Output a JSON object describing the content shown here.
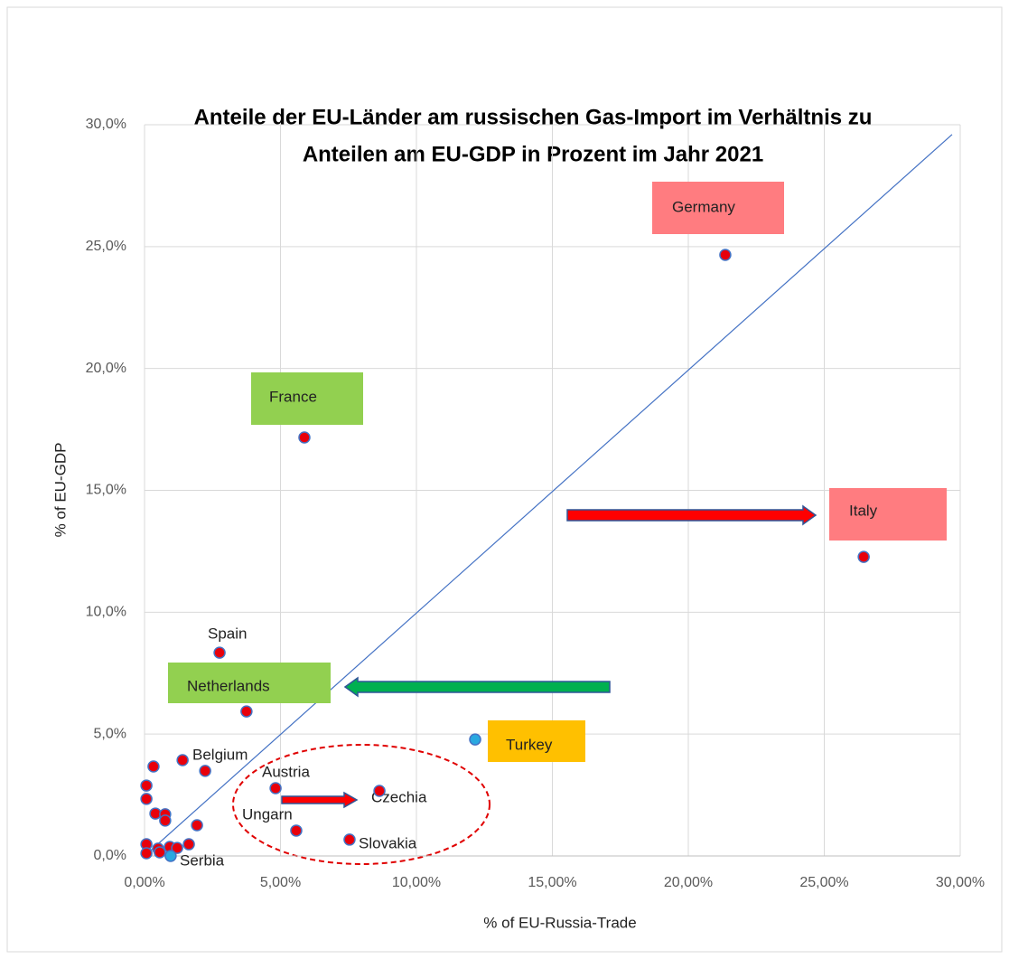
{
  "chart_data": {
    "type": "scatter",
    "title": [
      "Anteile der EU-Länder am russischen Gas-Import im Verhältnis zu",
      "Anteilen am EU-GDP in Prozent im Jahr 2021"
    ],
    "x_label": "% of  EU-Russia-Trade",
    "y_label": "% of EU-GDP",
    "xlim": [
      0,
      30
    ],
    "ylim": [
      0,
      30
    ],
    "xticks": [
      {
        "value": 0,
        "label": "0,00%"
      },
      {
        "value": 5,
        "label": "5,00%"
      },
      {
        "value": 10,
        "label": "10,00%"
      },
      {
        "value": 15,
        "label": "15,00%"
      },
      {
        "value": 20,
        "label": "20,00%"
      },
      {
        "value": 25,
        "label": "25,00%"
      },
      {
        "value": 30,
        "label": "30,00%"
      }
    ],
    "yticks": [
      {
        "value": 0,
        "label": "0,0%"
      },
      {
        "value": 5,
        "label": "5,0%"
      },
      {
        "value": 10,
        "label": "10,0%"
      },
      {
        "value": 15,
        "label": "15,0%"
      },
      {
        "value": 20,
        "label": "20,0%"
      },
      {
        "value": 25,
        "label": "25,0%"
      },
      {
        "value": 30,
        "label": "30,0%"
      }
    ],
    "grid": true,
    "reference_line": {
      "x": [
        0,
        29.7
      ],
      "y": [
        0,
        29.6
      ],
      "color": "#4472c4"
    },
    "series": [
      {
        "color": "#e8000b",
        "x": [
          21.36,
          5.88,
          26.45,
          2.76,
          3.75,
          1.4,
          2.23,
          4.82,
          8.64,
          5.58,
          7.54,
          0.33,
          0.07,
          0.07,
          0.4,
          0.76,
          0.76,
          1.93,
          0.07,
          0.07,
          0.5,
          0.93,
          1.2,
          1.63,
          0.56
        ],
        "values": [
          24.66,
          17.17,
          12.27,
          8.34,
          5.93,
          3.93,
          3.49,
          2.78,
          2.67,
          1.04,
          0.67,
          3.67,
          2.89,
          2.34,
          1.74,
          1.71,
          1.45,
          1.26,
          0.48,
          0.11,
          0.3,
          0.37,
          0.33,
          0.48,
          0.15
        ]
      },
      {
        "color": "#29a8e0",
        "x": [
          12.16,
          0.96
        ],
        "values": [
          4.78,
          0.0
        ]
      }
    ],
    "annotations": [
      {
        "text": "Germany",
        "color": "#ff7c80"
      },
      {
        "text": "France",
        "color": "#92d050"
      },
      {
        "text": "Italy",
        "color": "#ff7c80"
      },
      {
        "text": "Netherlands",
        "color": "#92d050"
      },
      {
        "text": "Turkey",
        "color": "#ffc000"
      },
      {
        "text": "Spain"
      },
      {
        "text": "Belgium"
      },
      {
        "text": "Austria"
      },
      {
        "text": "Czechia"
      },
      {
        "text": "Ungarn"
      },
      {
        "text": "Slovakia"
      },
      {
        "text": "Serbia"
      }
    ]
  }
}
